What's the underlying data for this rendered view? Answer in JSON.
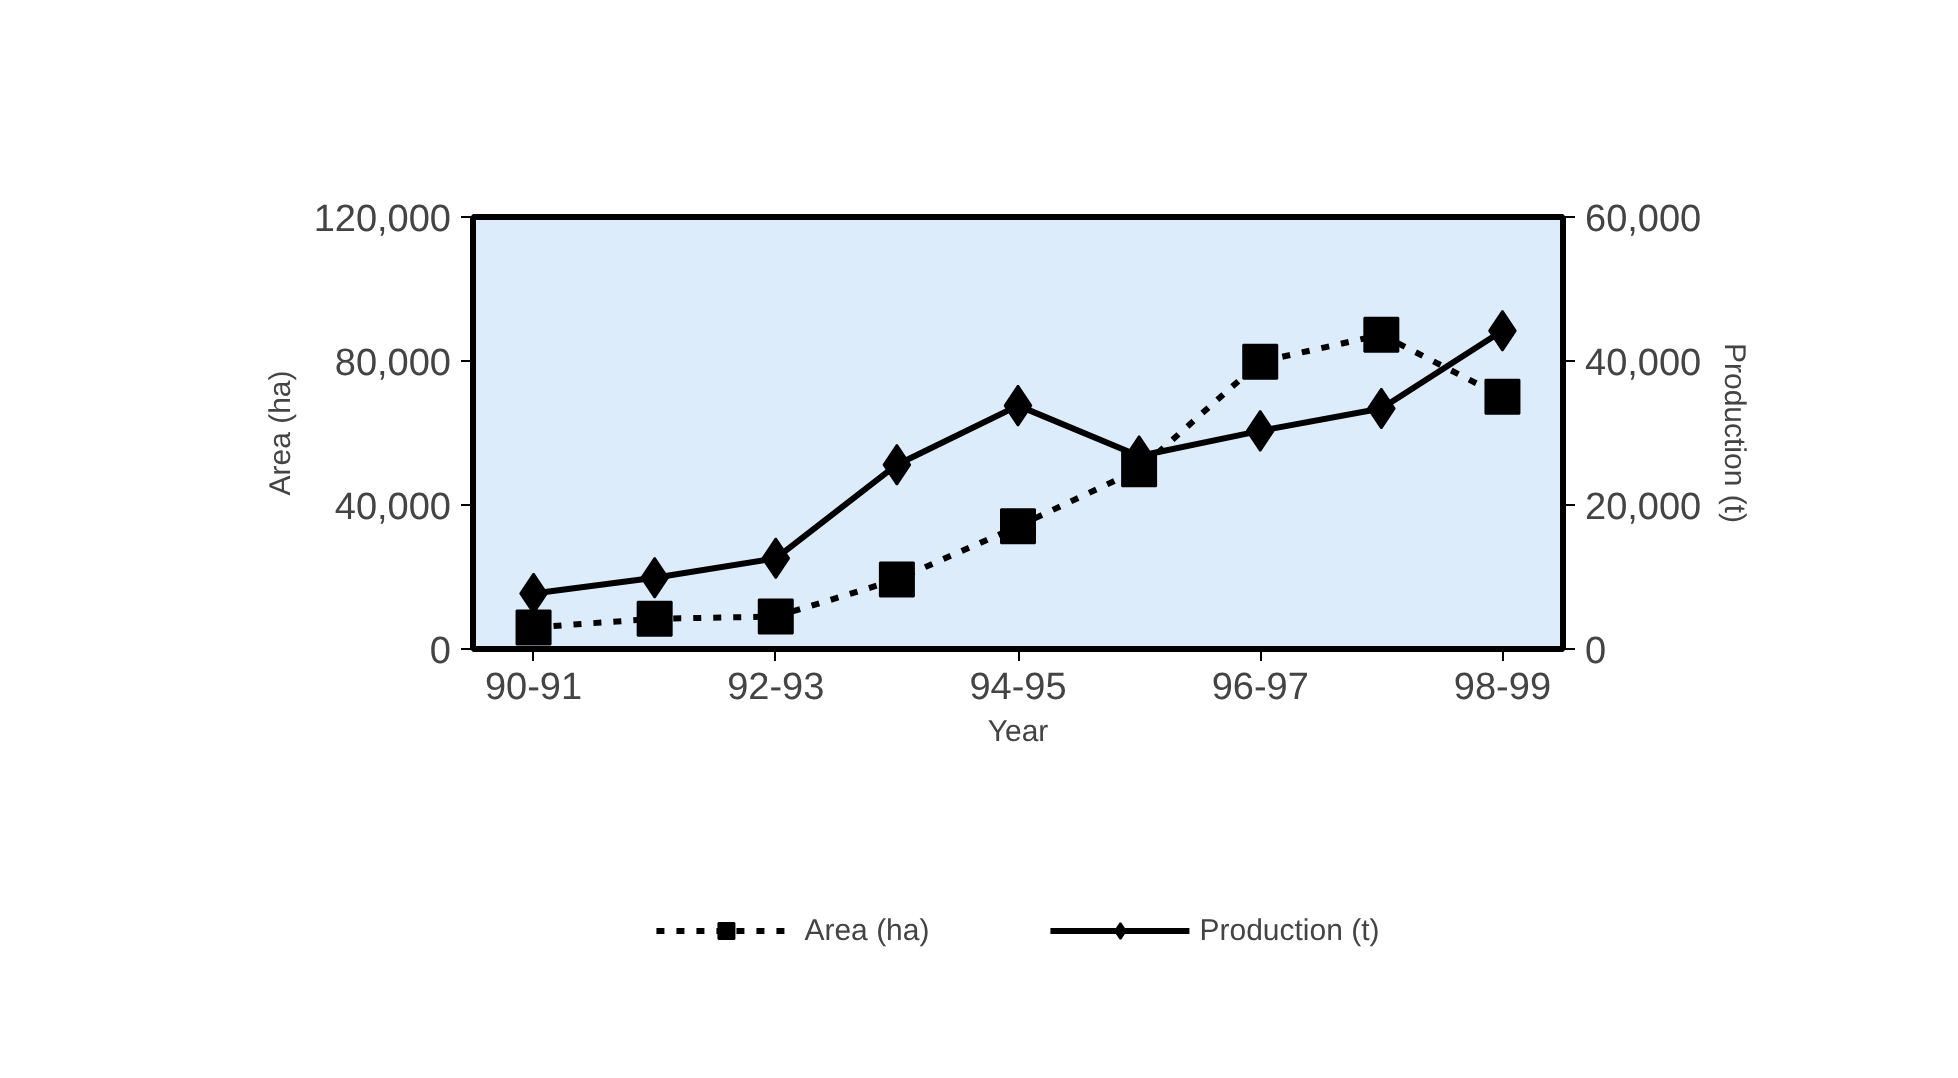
{
  "chart_data": {
    "type": "line",
    "xlabel": "Year",
    "ylabel": "Area (ha)",
    "y2label": "Production (t)",
    "categories": [
      "90-91",
      null,
      "92-93",
      null,
      "94-95",
      null,
      "96-97",
      null,
      "98-99"
    ],
    "ylim": [
      0,
      120000
    ],
    "yticks": [
      {
        "value": 0,
        "label": "0"
      },
      {
        "value": 40000,
        "label": "40,000"
      },
      {
        "value": 80000,
        "label": "80,000"
      },
      {
        "value": 120000,
        "label": "120,000"
      }
    ],
    "y2lim": [
      0,
      60000
    ],
    "y2ticks": [
      {
        "value": 0,
        "label": "0"
      },
      {
        "value": 20000,
        "label": "20,000"
      },
      {
        "value": 40000,
        "label": "40,000"
      },
      {
        "value": 60000,
        "label": "60,000"
      }
    ],
    "series": [
      {
        "name": "Area (ha)",
        "color": "#000000",
        "marker": "square",
        "line_style": "dashed",
        "values": [
          6000,
          8400,
          9000,
          19300,
          34100,
          49900,
          79800,
          87300,
          70100
        ]
      },
      {
        "name": "Production (t)",
        "color": "#000000",
        "marker": "diamond",
        "line_style": "solid",
        "axis": "y2",
        "values": [
          7700,
          9900,
          12600,
          25600,
          33800,
          26800,
          30300,
          33400,
          44200
        ]
      }
    ],
    "grid": false,
    "legend": "bottom"
  }
}
